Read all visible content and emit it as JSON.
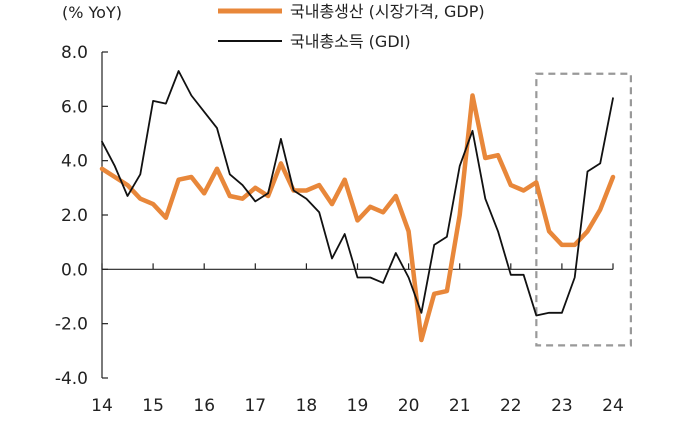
{
  "chart_data": {
    "type": "line",
    "unit_label": "(% YoY)",
    "ylim": [
      -4.0,
      8.0
    ],
    "y_ticks": [
      "8.0",
      "6.0",
      "4.0",
      "2.0",
      "0.0",
      "-2.0",
      "-4.0"
    ],
    "y_tick_values": [
      8,
      6,
      4,
      2,
      0,
      -2,
      -4
    ],
    "x_tick_labels": [
      "14",
      "15",
      "16",
      "17",
      "18",
      "19",
      "20",
      "21",
      "22",
      "23",
      "24"
    ],
    "x_tick_values": [
      14,
      15,
      16,
      17,
      18,
      19,
      20,
      21,
      22,
      23,
      24
    ],
    "xlim": [
      14,
      24
    ],
    "grid": false,
    "legend_position": "top",
    "highlight_box": {
      "x_from": 22.5,
      "x_to": 24.35,
      "y_from": -2.8,
      "y_to": 7.2
    },
    "series": [
      {
        "name": "국내총생산 (시장가격, GDP)",
        "color": "#E8873A",
        "x": [
          14.0,
          14.25,
          14.5,
          14.75,
          15.0,
          15.25,
          15.5,
          15.75,
          16.0,
          16.25,
          16.5,
          16.75,
          17.0,
          17.25,
          17.5,
          17.75,
          18.0,
          18.25,
          18.5,
          18.75,
          19.0,
          19.25,
          19.5,
          19.75,
          20.0,
          20.25,
          20.5,
          20.75,
          21.0,
          21.25,
          21.5,
          21.75,
          22.0,
          22.25,
          22.5,
          22.75,
          23.0,
          23.25,
          23.5,
          23.75,
          24.0
        ],
        "values": [
          3.7,
          3.4,
          3.1,
          2.6,
          2.4,
          1.9,
          3.3,
          3.4,
          2.8,
          3.7,
          2.7,
          2.6,
          3.0,
          2.7,
          3.9,
          2.9,
          2.9,
          3.1,
          2.4,
          3.3,
          1.8,
          2.3,
          2.1,
          2.7,
          1.4,
          -2.6,
          -0.9,
          -0.8,
          2.0,
          6.4,
          4.1,
          4.2,
          3.1,
          2.9,
          3.2,
          1.4,
          0.9,
          0.9,
          1.4,
          2.2,
          3.4
        ]
      },
      {
        "name": "국내총소득 (GDI)",
        "color": "#111111",
        "x": [
          14.0,
          14.25,
          14.5,
          14.75,
          15.0,
          15.25,
          15.5,
          15.75,
          16.0,
          16.25,
          16.5,
          16.75,
          17.0,
          17.25,
          17.5,
          17.75,
          18.0,
          18.25,
          18.5,
          18.75,
          19.0,
          19.25,
          19.5,
          19.75,
          20.0,
          20.25,
          20.5,
          20.75,
          21.0,
          21.25,
          21.5,
          21.75,
          22.0,
          22.25,
          22.5,
          22.75,
          23.0,
          23.25,
          23.5,
          23.75,
          24.0
        ],
        "values": [
          4.7,
          3.8,
          2.7,
          3.5,
          6.2,
          6.1,
          7.3,
          6.4,
          5.8,
          5.2,
          3.5,
          3.1,
          2.5,
          2.8,
          4.8,
          2.9,
          2.6,
          2.1,
          0.4,
          1.3,
          -0.3,
          -0.3,
          -0.5,
          0.6,
          -0.3,
          -1.6,
          0.9,
          1.2,
          3.8,
          5.1,
          2.6,
          1.4,
          -0.2,
          -0.2,
          -1.7,
          -1.6,
          -1.6,
          -0.3,
          3.6,
          3.9,
          6.3
        ]
      }
    ]
  }
}
